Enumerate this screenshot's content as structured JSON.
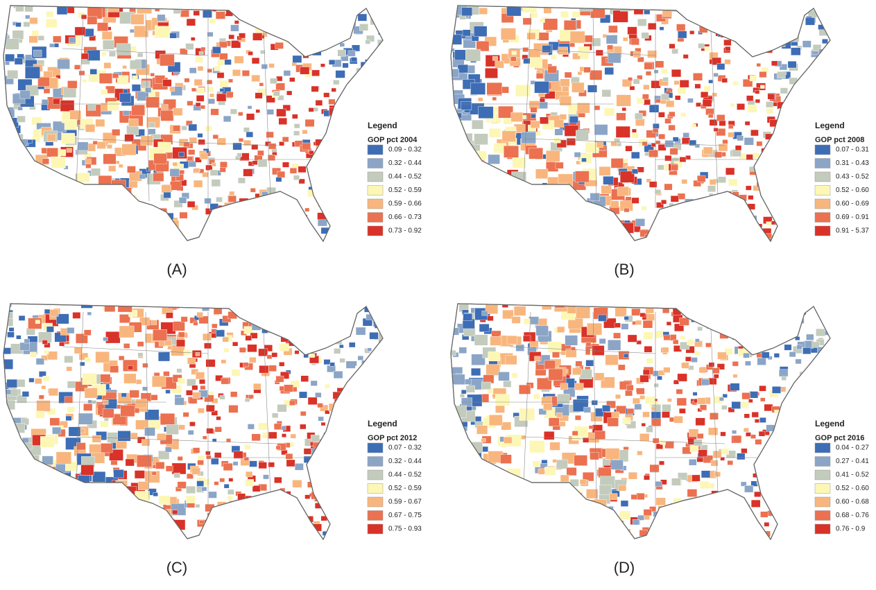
{
  "panels": [
    {
      "label": "(A)",
      "legend": {
        "heading": "Legend",
        "title": "GOP pct 2004",
        "classes": [
          {
            "label": "0.09 - 0.32",
            "color": "#3d6db5"
          },
          {
            "label": "0.32 - 0.44",
            "color": "#8ba5c7"
          },
          {
            "label": "0.44 - 0.52",
            "color": "#c3cbbd"
          },
          {
            "label": "0.52 - 0.59",
            "color": "#fdf7b6"
          },
          {
            "label": "0.59 - 0.66",
            "color": "#f8b67e"
          },
          {
            "label": "0.66 - 0.73",
            "color": "#eb7150"
          },
          {
            "label": "0.73 - 0.92",
            "color": "#d93228"
          }
        ]
      }
    },
    {
      "label": "(B)",
      "legend": {
        "heading": "Legend",
        "title": "GOP pct 2008",
        "classes": [
          {
            "label": "0.07 - 0.31",
            "color": "#3d6db5"
          },
          {
            "label": "0.31 - 0.43",
            "color": "#8ba5c7"
          },
          {
            "label": "0.43 - 0.52",
            "color": "#c3cbbd"
          },
          {
            "label": "0.52 - 0.60",
            "color": "#fdf7b6"
          },
          {
            "label": "0.60 - 0.69",
            "color": "#f8b67e"
          },
          {
            "label": "0.69 - 0.91",
            "color": "#eb7150"
          },
          {
            "label": "0.91 - 5.37",
            "color": "#d93228"
          }
        ]
      }
    },
    {
      "label": "(C)",
      "legend": {
        "heading": "Legend",
        "title": "GOP pct 2012",
        "classes": [
          {
            "label": "0.07 - 0.32",
            "color": "#3d6db5"
          },
          {
            "label": "0.32 - 0.44",
            "color": "#8ba5c7"
          },
          {
            "label": "0.44 - 0.52",
            "color": "#c3cbbd"
          },
          {
            "label": "0.52 - 0.59",
            "color": "#fdf7b6"
          },
          {
            "label": "0.59 - 0.67",
            "color": "#f8b67e"
          },
          {
            "label": "0.67 - 0.75",
            "color": "#eb7150"
          },
          {
            "label": "0.75 - 0.93",
            "color": "#d93228"
          }
        ]
      }
    },
    {
      "label": "(D)",
      "legend": {
        "heading": "Legend",
        "title": "GOP pct 2016",
        "classes": [
          {
            "label": "0.04 - 0.27",
            "color": "#3d6db5"
          },
          {
            "label": "0.27 - 0.41",
            "color": "#8ba5c7"
          },
          {
            "label": "0.41 - 0.52",
            "color": "#c3cbbd"
          },
          {
            "label": "0.52 - 0.60",
            "color": "#fdf7b6"
          },
          {
            "label": "0.60 - 0.68",
            "color": "#f8b67e"
          },
          {
            "label": "0.68 - 0.76",
            "color": "#eb7150"
          },
          {
            "label": "0.76 - 0.9",
            "color": "#d93228"
          }
        ]
      }
    }
  ]
}
